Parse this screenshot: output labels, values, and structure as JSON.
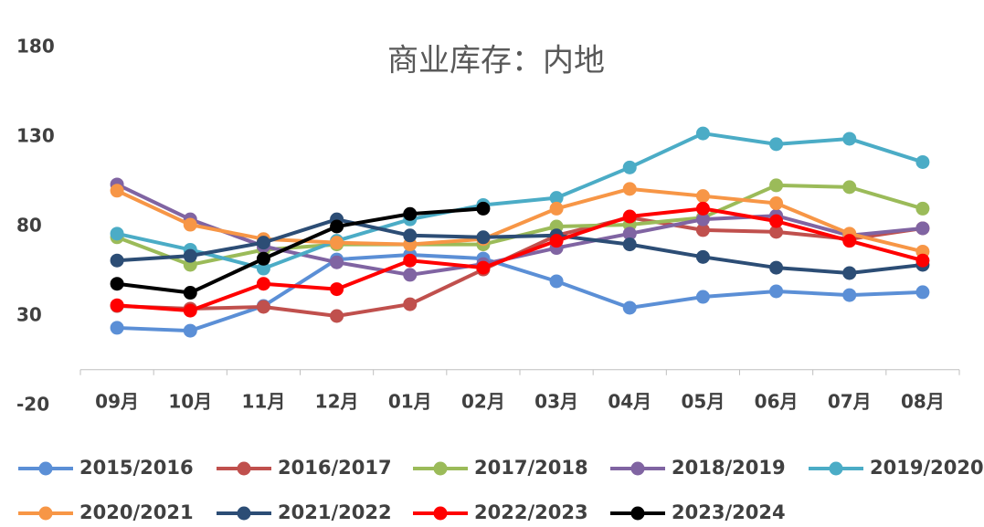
{
  "chart_data": {
    "type": "line",
    "title": "商业库存：内地",
    "categories": [
      "09月",
      "10月",
      "11月",
      "12月",
      "01月",
      "02月",
      "03月",
      "04月",
      "05月",
      "06月",
      "07月",
      "08月"
    ],
    "ylim": [
      -20,
      180
    ],
    "yticks": [
      -20,
      30,
      80,
      130,
      180
    ],
    "series": [
      {
        "name": "2015/2016",
        "color": "#5b8fd6",
        "values": [
          23.4,
          21.8,
          35.6,
          61.6,
          64.2,
          62.1,
          49.4,
          34.6,
          40.7,
          43.8,
          41.7,
          43.3
        ]
      },
      {
        "name": "2016/2017",
        "color": "#c0504d",
        "values": [
          35.6,
          34.1,
          35.1,
          30,
          36.6,
          56,
          75,
          85,
          78,
          77,
          73,
          79
        ]
      },
      {
        "name": "2017/2018",
        "color": "#9bbb59",
        "values": [
          74,
          58.6,
          67,
          70,
          70,
          70,
          80,
          81,
          85,
          103,
          102,
          90
        ]
      },
      {
        "name": "2018/2019",
        "color": "#8064a2",
        "values": [
          103.5,
          84,
          69,
          60,
          53,
          59,
          68,
          76,
          84,
          86,
          75,
          79
        ]
      },
      {
        "name": "2019/2020",
        "color": "#4bacc6",
        "values": [
          76,
          67,
          56.5,
          72,
          84,
          92,
          96,
          113,
          132,
          126,
          129,
          116
        ]
      },
      {
        "name": "2020/2021",
        "color": "#f79646",
        "values": [
          100,
          81,
          73,
          71,
          70,
          73,
          90,
          101,
          97,
          93,
          76,
          66
        ]
      },
      {
        "name": "2021/2022",
        "color": "#2c4d75",
        "values": [
          61,
          63.6,
          71,
          84,
          75,
          74,
          75,
          70,
          63,
          57,
          54,
          58.6
        ]
      },
      {
        "name": "2022/2023",
        "color": "#ff0000",
        "values": [
          36,
          33,
          48,
          45,
          61,
          57,
          72,
          85.6,
          90,
          83,
          72,
          61
        ]
      },
      {
        "name": "2023/2024",
        "color": "#000000",
        "values": [
          48,
          43,
          62,
          80,
          87,
          90,
          null,
          null,
          null,
          null,
          null,
          null
        ]
      }
    ]
  }
}
